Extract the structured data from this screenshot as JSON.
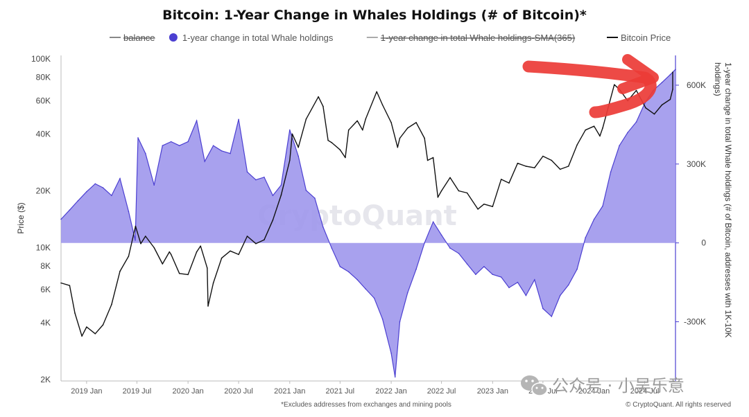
{
  "chart_data": {
    "type": "area",
    "title": "Bitcoin: 1-Year Change in Whales Holdings (# of Bitcoin)*",
    "legend": [
      {
        "label": "balance",
        "color": "#888888",
        "struck": true
      },
      {
        "label": "1-year change in total Whale holdings",
        "color": "#4b3fd1",
        "struck": false
      },
      {
        "label": "1-year change in total Whale holdings-SMA(365)",
        "color": "#aaaaaa",
        "struck": true
      },
      {
        "label": "Bitcoin Price",
        "color": "#111111",
        "struck": false
      }
    ],
    "legend_placement": "top-center",
    "ylabel_left": "Price ($)",
    "ylabel_right": "1-year change in total Whale holdings (# of Bitcoin, addresses with 1K-10K holdings)",
    "y_left_scale": "log",
    "y_left_range": [
      2000,
      100000
    ],
    "y_left_ticks": [
      {
        "v": 2000,
        "label": "2K"
      },
      {
        "v": 4000,
        "label": "4K"
      },
      {
        "v": 6000,
        "label": "6K"
      },
      {
        "v": 8000,
        "label": "8K"
      },
      {
        "v": 10000,
        "label": "10K"
      },
      {
        "v": 20000,
        "label": "20K"
      },
      {
        "v": 40000,
        "label": "40K"
      },
      {
        "v": 60000,
        "label": "60K"
      },
      {
        "v": 80000,
        "label": "80K"
      },
      {
        "v": 100000,
        "label": "100K"
      }
    ],
    "y_right_range": [
      -520000,
      700000
    ],
    "y_right_ticks": [
      {
        "v": 600000,
        "label": "600K"
      },
      {
        "v": 300000,
        "label": "300K"
      },
      {
        "v": 0,
        "label": "0"
      },
      {
        "v": -300000,
        "label": "-300K"
      }
    ],
    "x_range": [
      "2018-10-01",
      "2024-10-20"
    ],
    "x_ticks": [
      {
        "d": "2019-01-01",
        "label": "2019 Jan"
      },
      {
        "d": "2019-07-01",
        "label": "2019 Jul"
      },
      {
        "d": "2020-01-01",
        "label": "2020 Jan"
      },
      {
        "d": "2020-07-01",
        "label": "2020 Jul"
      },
      {
        "d": "2021-01-01",
        "label": "2021 Jan"
      },
      {
        "d": "2021-07-01",
        "label": "2021 Jul"
      },
      {
        "d": "2022-01-01",
        "label": "2022 Jan"
      },
      {
        "d": "2022-07-01",
        "label": "2022 Jul"
      },
      {
        "d": "2023-01-01",
        "label": "2023 Jan"
      },
      {
        "d": "2023-07-01",
        "label": "2023 Jul"
      },
      {
        "d": "2024-01-01",
        "label": "2024 Jan"
      },
      {
        "d": "2024-07-01",
        "label": "2024 Jul"
      }
    ],
    "series": [
      {
        "name": "1-year change in total Whale holdings",
        "color": "#4b3fd1",
        "fill": "#9f97ec",
        "axis": "right",
        "points": [
          [
            "2018-10-01",
            90000
          ],
          [
            "2018-11-01",
            125000
          ],
          [
            "2018-12-01",
            160000
          ],
          [
            "2019-01-01",
            195000
          ],
          [
            "2019-02-01",
            225000
          ],
          [
            "2019-03-01",
            210000
          ],
          [
            "2019-04-01",
            180000
          ],
          [
            "2019-05-01",
            245000
          ],
          [
            "2019-06-01",
            120000
          ],
          [
            "2019-06-25",
            10000
          ],
          [
            "2019-07-05",
            400000
          ],
          [
            "2019-08-01",
            340000
          ],
          [
            "2019-09-01",
            220000
          ],
          [
            "2019-10-01",
            370000
          ],
          [
            "2019-11-01",
            385000
          ],
          [
            "2019-12-01",
            370000
          ],
          [
            "2020-01-01",
            385000
          ],
          [
            "2020-02-01",
            465000
          ],
          [
            "2020-03-01",
            310000
          ],
          [
            "2020-04-01",
            370000
          ],
          [
            "2020-05-01",
            350000
          ],
          [
            "2020-06-01",
            340000
          ],
          [
            "2020-07-01",
            470000
          ],
          [
            "2020-08-01",
            270000
          ],
          [
            "2020-09-01",
            240000
          ],
          [
            "2020-10-01",
            250000
          ],
          [
            "2020-11-01",
            180000
          ],
          [
            "2020-12-01",
            220000
          ],
          [
            "2021-01-01",
            430000
          ],
          [
            "2021-02-01",
            330000
          ],
          [
            "2021-03-01",
            200000
          ],
          [
            "2021-04-01",
            170000
          ],
          [
            "2021-05-01",
            60000
          ],
          [
            "2021-06-01",
            -20000
          ],
          [
            "2021-07-01",
            -90000
          ],
          [
            "2021-08-01",
            -110000
          ],
          [
            "2021-09-01",
            -140000
          ],
          [
            "2021-10-01",
            -175000
          ],
          [
            "2021-11-01",
            -210000
          ],
          [
            "2021-12-01",
            -290000
          ],
          [
            "2022-01-01",
            -420000
          ],
          [
            "2022-01-15",
            -510000
          ],
          [
            "2022-02-01",
            -300000
          ],
          [
            "2022-03-01",
            -190000
          ],
          [
            "2022-04-01",
            -100000
          ],
          [
            "2022-05-01",
            0
          ],
          [
            "2022-06-01",
            80000
          ],
          [
            "2022-07-01",
            30000
          ],
          [
            "2022-08-01",
            -20000
          ],
          [
            "2022-09-01",
            -40000
          ],
          [
            "2022-10-01",
            -80000
          ],
          [
            "2022-11-01",
            -120000
          ],
          [
            "2022-12-01",
            -90000
          ],
          [
            "2023-01-01",
            -120000
          ],
          [
            "2023-02-01",
            -130000
          ],
          [
            "2023-03-01",
            -170000
          ],
          [
            "2023-04-01",
            -150000
          ],
          [
            "2023-05-01",
            -200000
          ],
          [
            "2023-06-01",
            -140000
          ],
          [
            "2023-07-01",
            -250000
          ],
          [
            "2023-08-01",
            -280000
          ],
          [
            "2023-09-01",
            -200000
          ],
          [
            "2023-10-01",
            -160000
          ],
          [
            "2023-11-01",
            -100000
          ],
          [
            "2023-12-01",
            20000
          ],
          [
            "2024-01-01",
            90000
          ],
          [
            "2024-02-01",
            140000
          ],
          [
            "2024-03-01",
            270000
          ],
          [
            "2024-04-01",
            370000
          ],
          [
            "2024-05-01",
            420000
          ],
          [
            "2024-06-01",
            460000
          ],
          [
            "2024-07-01",
            530000
          ],
          [
            "2024-08-01",
            580000
          ],
          [
            "2024-09-01",
            610000
          ],
          [
            "2024-10-01",
            640000
          ],
          [
            "2024-10-20",
            660000
          ]
        ]
      },
      {
        "name": "Bitcoin Price",
        "color": "#111111",
        "axis": "left",
        "points": [
          [
            "2018-10-01",
            6500
          ],
          [
            "2018-11-01",
            6300
          ],
          [
            "2018-11-20",
            4500
          ],
          [
            "2018-12-15",
            3400
          ],
          [
            "2019-01-01",
            3800
          ],
          [
            "2019-02-01",
            3500
          ],
          [
            "2019-03-01",
            3900
          ],
          [
            "2019-04-01",
            5000
          ],
          [
            "2019-05-01",
            7500
          ],
          [
            "2019-06-01",
            9000
          ],
          [
            "2019-06-26",
            13000
          ],
          [
            "2019-07-15",
            10500
          ],
          [
            "2019-08-01",
            11500
          ],
          [
            "2019-09-01",
            10000
          ],
          [
            "2019-10-01",
            8200
          ],
          [
            "2019-10-26",
            9500
          ],
          [
            "2019-11-01",
            9200
          ],
          [
            "2019-12-01",
            7300
          ],
          [
            "2020-01-01",
            7200
          ],
          [
            "2020-02-01",
            9500
          ],
          [
            "2020-02-15",
            10200
          ],
          [
            "2020-03-10",
            7800
          ],
          [
            "2020-03-13",
            4900
          ],
          [
            "2020-04-01",
            6500
          ],
          [
            "2020-05-01",
            8800
          ],
          [
            "2020-06-01",
            9600
          ],
          [
            "2020-07-01",
            9200
          ],
          [
            "2020-08-01",
            11500
          ],
          [
            "2020-09-01",
            10500
          ],
          [
            "2020-10-01",
            11000
          ],
          [
            "2020-11-01",
            14000
          ],
          [
            "2020-12-01",
            19000
          ],
          [
            "2021-01-01",
            29000
          ],
          [
            "2021-01-10",
            40000
          ],
          [
            "2021-02-01",
            34000
          ],
          [
            "2021-03-01",
            48000
          ],
          [
            "2021-04-14",
            63000
          ],
          [
            "2021-05-01",
            56000
          ],
          [
            "2021-05-19",
            37000
          ],
          [
            "2021-06-01",
            36000
          ],
          [
            "2021-07-01",
            33000
          ],
          [
            "2021-07-20",
            30000
          ],
          [
            "2021-08-01",
            42000
          ],
          [
            "2021-09-01",
            47000
          ],
          [
            "2021-09-20",
            42000
          ],
          [
            "2021-10-01",
            48000
          ],
          [
            "2021-11-10",
            67000
          ],
          [
            "2021-12-01",
            57000
          ],
          [
            "2022-01-01",
            46000
          ],
          [
            "2022-01-24",
            34000
          ],
          [
            "2022-02-01",
            38000
          ],
          [
            "2022-03-01",
            43000
          ],
          [
            "2022-04-01",
            46000
          ],
          [
            "2022-05-01",
            38000
          ],
          [
            "2022-05-12",
            29000
          ],
          [
            "2022-06-01",
            30000
          ],
          [
            "2022-06-18",
            18500
          ],
          [
            "2022-07-01",
            20000
          ],
          [
            "2022-08-01",
            23500
          ],
          [
            "2022-09-01",
            20000
          ],
          [
            "2022-10-01",
            19500
          ],
          [
            "2022-11-09",
            16000
          ],
          [
            "2022-12-01",
            17000
          ],
          [
            "2023-01-01",
            16500
          ],
          [
            "2023-02-01",
            23000
          ],
          [
            "2023-03-01",
            22000
          ],
          [
            "2023-04-01",
            28000
          ],
          [
            "2023-05-01",
            27000
          ],
          [
            "2023-06-01",
            26500
          ],
          [
            "2023-07-01",
            30500
          ],
          [
            "2023-08-01",
            29000
          ],
          [
            "2023-09-01",
            26000
          ],
          [
            "2023-10-01",
            27000
          ],
          [
            "2023-11-01",
            35000
          ],
          [
            "2023-12-01",
            42000
          ],
          [
            "2024-01-01",
            44000
          ],
          [
            "2024-01-22",
            39000
          ],
          [
            "2024-02-01",
            43000
          ],
          [
            "2024-03-14",
            73000
          ],
          [
            "2024-04-01",
            69000
          ],
          [
            "2024-05-01",
            60000
          ],
          [
            "2024-06-01",
            68000
          ],
          [
            "2024-07-05",
            55000
          ],
          [
            "2024-08-05",
            51000
          ],
          [
            "2024-09-01",
            57000
          ],
          [
            "2024-10-01",
            61000
          ],
          [
            "2024-10-20",
            69000
          ],
          [
            "2024-11-10",
            85000
          ]
        ]
      }
    ],
    "watermark": "CryptoQuant",
    "footnote": "*Excludes addresses from exchanges and mining pools",
    "copyright": "© CryptoQuant. All rights reserved"
  },
  "overlay": {
    "wechat_text": "公众号 · 小吴乐意",
    "arrow_color": "#ec3b36"
  }
}
